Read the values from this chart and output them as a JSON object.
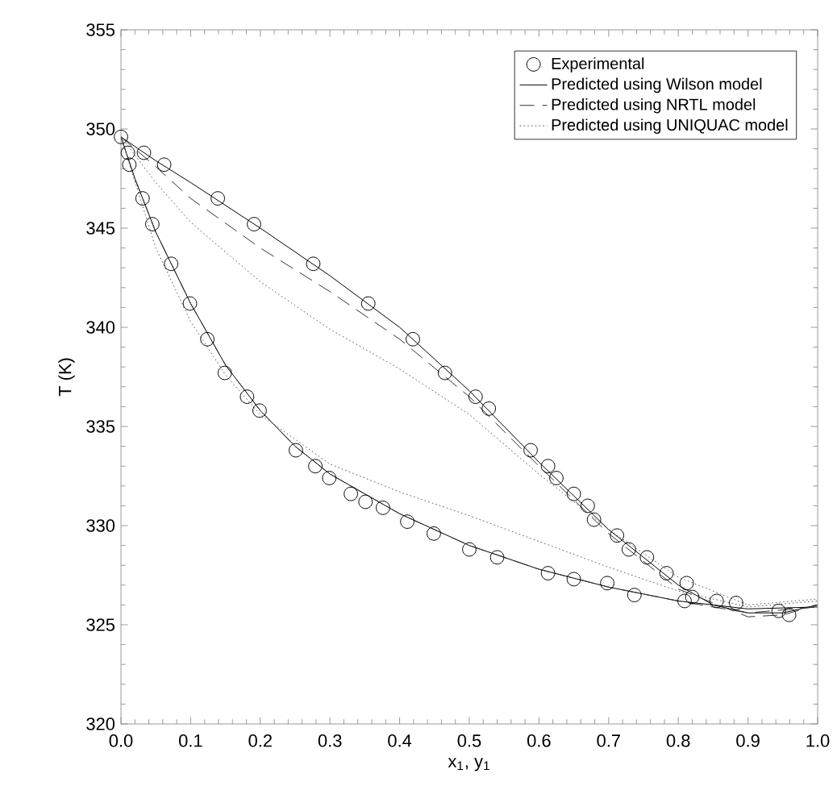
{
  "chart_data": {
    "type": "line",
    "xlabel": "x$_{1}$, y$_{1}$",
    "ylabel": "T (K)",
    "xlim": [
      0,
      1
    ],
    "ylim": [
      320,
      355
    ],
    "xticks": [
      {
        "value": 0,
        "label": "0.0"
      },
      0.1,
      0.2,
      0.3,
      0.4,
      0.5,
      0.6,
      0.7,
      0.8,
      0.9,
      {
        "value": 1,
        "label": "1.0"
      }
    ],
    "yticks": [
      320,
      325,
      330,
      335,
      340,
      345,
      350,
      355
    ],
    "legend": "top right",
    "grid": false,
    "series": [
      {
        "name": "Experimental",
        "type": "scatter",
        "marker": "circle",
        "color": "#000000",
        "x": [
          0.0,
          0.033,
          0.062,
          0.139,
          0.191,
          0.276,
          0.355,
          0.419,
          0.465,
          0.509,
          0.528,
          0.588,
          0.613,
          0.625,
          0.65,
          0.67,
          0.679,
          0.712,
          0.729,
          0.755,
          0.783,
          0.812,
          0.82,
          0.855,
          0.883,
          0.01,
          0.012,
          0.031,
          0.045,
          0.072,
          0.099,
          0.124,
          0.149,
          0.181,
          0.199,
          0.251,
          0.279,
          0.299,
          0.33,
          0.351,
          0.376,
          0.411,
          0.449,
          0.5,
          0.54,
          0.613,
          0.65,
          0.698,
          0.737,
          0.809,
          0.944,
          0.959
        ],
        "values": [
          349.6,
          348.8,
          348.2,
          346.5,
          345.2,
          343.2,
          341.2,
          339.4,
          337.7,
          336.5,
          335.9,
          333.8,
          333.0,
          332.4,
          331.6,
          331.0,
          330.3,
          329.5,
          328.8,
          328.4,
          327.6,
          327.1,
          326.4,
          326.2,
          326.1,
          348.8,
          348.2,
          346.5,
          345.2,
          343.2,
          341.2,
          339.4,
          337.7,
          336.5,
          335.8,
          333.8,
          333.0,
          332.4,
          331.6,
          331.2,
          330.9,
          330.2,
          329.6,
          328.8,
          328.4,
          327.6,
          327.3,
          327.1,
          326.5,
          326.2,
          325.7,
          325.5
        ]
      },
      {
        "name": "Predicted using Wilson model",
        "type": "line",
        "line_style": "solid",
        "color": "#000000",
        "x": [
          0,
          0.02,
          0.05,
          0.1,
          0.15,
          0.2,
          0.25,
          0.3,
          0.4,
          0.5,
          0.6,
          0.7,
          0.8,
          0.9,
          1.0,
          null,
          0,
          0.05,
          0.1,
          0.2,
          0.3,
          0.4,
          0.5,
          0.6,
          0.7,
          0.8,
          0.85,
          0.9,
          0.95,
          1.0
        ],
        "values": [
          349.6,
          347.5,
          344.8,
          341.2,
          338.1,
          335.8,
          334.0,
          332.6,
          330.6,
          329.0,
          327.8,
          326.9,
          326.2,
          325.8,
          325.9,
          null,
          349.6,
          348.4,
          347.3,
          345.0,
          342.6,
          340.0,
          336.8,
          333.2,
          329.8,
          327.0,
          326.0,
          325.6,
          325.6,
          326.0
        ]
      },
      {
        "name": "Predicted using NRTL model",
        "type": "line",
        "line_style": "dashed",
        "color": "#333333",
        "x": [
          0,
          0.02,
          0.05,
          0.1,
          0.15,
          0.2,
          0.25,
          0.3,
          0.4,
          0.5,
          0.6,
          0.7,
          0.8,
          0.9,
          1.0,
          null,
          0,
          0.05,
          0.1,
          0.2,
          0.3,
          0.4,
          0.5,
          0.6,
          0.7,
          0.8,
          0.9,
          0.95,
          1.0
        ],
        "values": [
          349.6,
          347.5,
          344.8,
          341.2,
          338.1,
          335.8,
          334.0,
          332.6,
          330.6,
          329.0,
          327.8,
          326.9,
          326.2,
          325.6,
          325.9,
          null,
          349.6,
          348.1,
          346.5,
          344.0,
          341.8,
          339.4,
          336.5,
          333.0,
          329.6,
          326.8,
          325.4,
          325.5,
          326.0
        ]
      },
      {
        "name": "Predicted using UNIQUAC model",
        "type": "line",
        "line_style": "dotted",
        "color": "#555555",
        "x": [
          0,
          0.05,
          0.1,
          0.15,
          0.2,
          0.3,
          0.4,
          0.5,
          0.6,
          0.7,
          0.8,
          0.9,
          1.0,
          null,
          0,
          0.05,
          0.1,
          0.2,
          0.3,
          0.4,
          0.5,
          0.6,
          0.7,
          0.8,
          0.9,
          1.0
        ],
        "values": [
          349.6,
          344.0,
          340.3,
          337.6,
          335.6,
          333.1,
          331.7,
          330.5,
          329.2,
          327.9,
          326.7,
          325.9,
          326.2,
          null,
          349.6,
          347.3,
          345.3,
          342.3,
          339.9,
          337.9,
          335.6,
          332.6,
          329.8,
          327.4,
          326.0,
          326.3
        ]
      }
    ]
  }
}
